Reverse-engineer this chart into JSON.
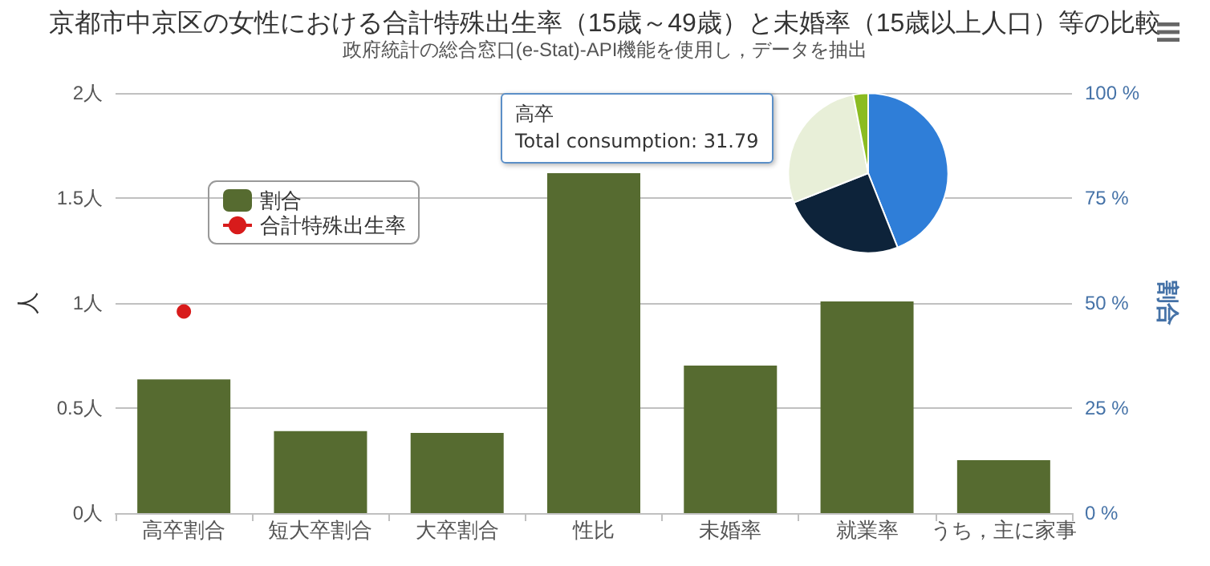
{
  "chart_data": [
    {
      "type": "bar",
      "title": "京都市中京区の女性における合計特殊出生率（15歳～49歳）と未婚率（15歳以上人口）等の比較",
      "subtitle": "政府統計の総合窓口(e-Stat)-API機能を使用し，データを抽出",
      "ylabel": "人",
      "y2label": "割合",
      "categories": [
        "高卒割合",
        "短大卒割合",
        "大卒割合",
        "性比",
        "未婚率",
        "就業率",
        "うち，主に家事"
      ],
      "series": [
        {
          "name": "割合",
          "type": "bar",
          "axis": "y2",
          "color": "#566b30",
          "values": [
            31.8,
            19.5,
            19.1,
            80.9,
            35.1,
            50.4,
            12.6
          ]
        },
        {
          "name": "合計特殊出生率",
          "type": "line",
          "color": "#d81b1b",
          "marker": "circle",
          "values": [
            0.96,
            null,
            null,
            null,
            null,
            null,
            null
          ]
        }
      ],
      "ylim": [
        0,
        2
      ],
      "yticks": [
        {
          "value": 0,
          "label": "0人"
        },
        {
          "value": 0.5,
          "label": "0.5人"
        },
        {
          "value": 1,
          "label": "1人"
        },
        {
          "value": 1.5,
          "label": "1.5人"
        },
        {
          "value": 2,
          "label": "2人"
        }
      ],
      "y2lim": [
        0,
        100
      ],
      "y2ticks": [
        {
          "value": 0,
          "label": "0 %"
        },
        {
          "value": 25,
          "label": "25 %"
        },
        {
          "value": 50,
          "label": "50 %"
        },
        {
          "value": 75,
          "label": "75 %"
        },
        {
          "value": 100,
          "label": "100 %"
        }
      ],
      "grid": "y",
      "legend": "top left"
    },
    {
      "type": "pie",
      "categories": [
        null,
        null,
        null,
        null
      ],
      "values": [
        44,
        25,
        28,
        3
      ],
      "colors": [
        "#2f7ed8",
        "#0d233a",
        "#e8efd8",
        "#8bbc21"
      ],
      "annotations": [
        "高卒\nTotal consumption: 31.79"
      ]
    }
  ]
}
